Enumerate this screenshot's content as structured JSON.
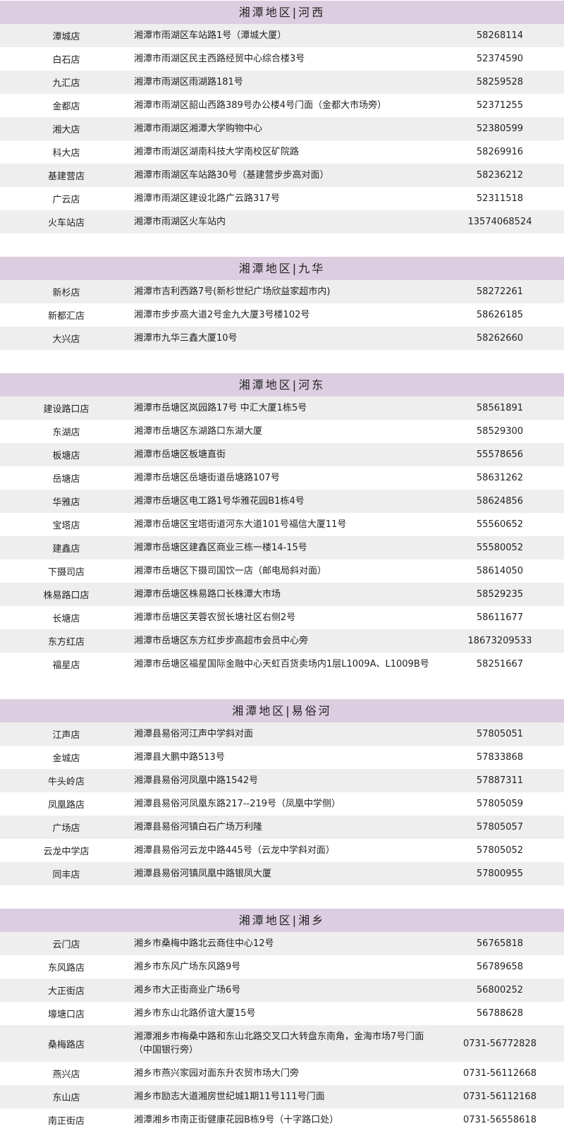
{
  "sections": [
    {
      "title": "湘潭地区|河西",
      "stores": [
        {
          "name": "潭城店",
          "address": "湘潭市雨湖区车站路1号（潭城大厦）",
          "phone": "58268114"
        },
        {
          "name": "白石店",
          "address": "湘潭市雨湖区民主西路经贸中心综合楼3号",
          "phone": "52374590"
        },
        {
          "name": "九汇店",
          "address": "湘潭市雨湖区雨湖路181号",
          "phone": "58259528"
        },
        {
          "name": "金都店",
          "address": "湘潭市雨湖区韶山西路389号办公楼4号门面（金都大市场旁）",
          "phone": "52371255"
        },
        {
          "name": "湘大店",
          "address": "湘潭市雨湖区湘潭大学购物中心",
          "phone": "52380599"
        },
        {
          "name": "科大店",
          "address": "湘潭市雨湖区湖南科技大学南校区矿院路",
          "phone": "58269916"
        },
        {
          "name": "基建营店",
          "address": "湘潭市雨湖区车站路30号（基建营步步高对面）",
          "phone": "58236212"
        },
        {
          "name": "广云店",
          "address": "湘潭市雨湖区建设北路广云路317号",
          "phone": "52311518"
        },
        {
          "name": "火车站店",
          "address": "湘潭市雨湖区火车站内",
          "phone": "13574068524"
        }
      ]
    },
    {
      "title": "湘潭地区|九华",
      "stores": [
        {
          "name": "新杉店",
          "address": "湘潭市吉利西路7号(新杉世纪广场欣益家超市内)",
          "phone": "58272261"
        },
        {
          "name": "新都汇店",
          "address": "湘潭市步步高大道2号金九大厦3号楼102号",
          "phone": "58626185"
        },
        {
          "name": "大兴店",
          "address": "湘潭市九华三鑫大厦10号",
          "phone": "58262660"
        }
      ]
    },
    {
      "title": "湘潭地区|河东",
      "stores": [
        {
          "name": "建设路口店",
          "address": "湘潭市岳塘区岚园路17号 中汇大厦1栋5号",
          "phone": "58561891"
        },
        {
          "name": "东湖店",
          "address": "湘潭市岳塘区东湖路口东湖大厦",
          "phone": "58529300"
        },
        {
          "name": "板塘店",
          "address": "湘潭市岳塘区板塘直街",
          "phone": "55578656"
        },
        {
          "name": "岳塘店",
          "address": "湘潭市岳塘区岳塘街道岳塘路107号",
          "phone": "58631262"
        },
        {
          "name": "华雅店",
          "address": "湘潭市岳塘区电工路1号华雅花园B1栋4号",
          "phone": "58624856"
        },
        {
          "name": "宝塔店",
          "address": "湘潭市岳塘区宝塔街道河东大道101号福信大厦11号",
          "phone": "55560652"
        },
        {
          "name": "建鑫店",
          "address": "湘潭市岳塘区建鑫区商业三栋一楼14-15号",
          "phone": "55580052"
        },
        {
          "name": "下摄司店",
          "address": "湘潭市岳塘区下摄司国饮一店（邮电局斜对面）",
          "phone": "58614050"
        },
        {
          "name": "株易路口店",
          "address": "湘潭市岳塘区株易路口长株潭大市场",
          "phone": "58529235"
        },
        {
          "name": "长塘店",
          "address": "湘潭市岳塘区芙蓉农贸长塘社区右侧2号",
          "phone": "58611677"
        },
        {
          "name": "东方红店",
          "address": "湘潭市岳塘区东方红步步高超市会员中心旁",
          "phone": "18673209533"
        },
        {
          "name": "福星店",
          "address": "湘潭市岳塘区福星国际金融中心天虹百货卖场内1层L1009A、L1009B号",
          "phone": "58251667"
        }
      ]
    },
    {
      "title": "湘潭地区|易俗河",
      "stores": [
        {
          "name": "江声店",
          "address": "湘潭县易俗河江声中学斜对面",
          "phone": "57805051"
        },
        {
          "name": "金城店",
          "address": "湘潭县大鹏中路513号",
          "phone": "57833868"
        },
        {
          "name": "牛头岭店",
          "address": "湘潭县易俗河凤凰中路1542号",
          "phone": "57887311"
        },
        {
          "name": "凤凰路店",
          "address": "湘潭县易俗河凤凰东路217--219号（凤凰中学侧）",
          "phone": "57805059"
        },
        {
          "name": "广场店",
          "address": "湘潭县易俗河镇白石广场万利隆",
          "phone": "57805057"
        },
        {
          "name": "云龙中学店",
          "address": "湘潭县易俗河云龙中路445号（云龙中学斜对面）",
          "phone": "57805052"
        },
        {
          "name": "同丰店",
          "address": "湘潭县易俗河镇凤凰中路银凤大厦",
          "phone": "57800955"
        }
      ]
    },
    {
      "title": "湘潭地区|湘乡",
      "stores": [
        {
          "name": "云门店",
          "address": "湘乡市桑梅中路北云商住中心12号",
          "phone": "56765818"
        },
        {
          "name": "东风路店",
          "address": "湘乡市东风广场东风路9号",
          "phone": "56789658"
        },
        {
          "name": "大正街店",
          "address": "湘乡市大正街商业广场6号",
          "phone": "56800252"
        },
        {
          "name": "壕塘口店",
          "address": "湘乡市东山北路侨谊大厦15号",
          "phone": "56788628"
        },
        {
          "name": "桑梅路店",
          "address": "湘潭湘乡市梅桑中路和东山北路交叉口大转盘东南角，金海市场7号门面（中国银行旁）",
          "phone": "0731-56772828"
        },
        {
          "name": "燕兴店",
          "address": "湘乡市燕兴家园对面东升农贸市场大门旁",
          "phone": "0731-56112668"
        },
        {
          "name": "东山店",
          "address": "湘乡市励志大道湘房世纪城1期11号111号门面",
          "phone": "0731-56112168"
        },
        {
          "name": "南正街店",
          "address": "湘潭湘乡市南正街健康花园B栋9号（十字路口处）",
          "phone": "0731-56558618"
        }
      ]
    }
  ]
}
